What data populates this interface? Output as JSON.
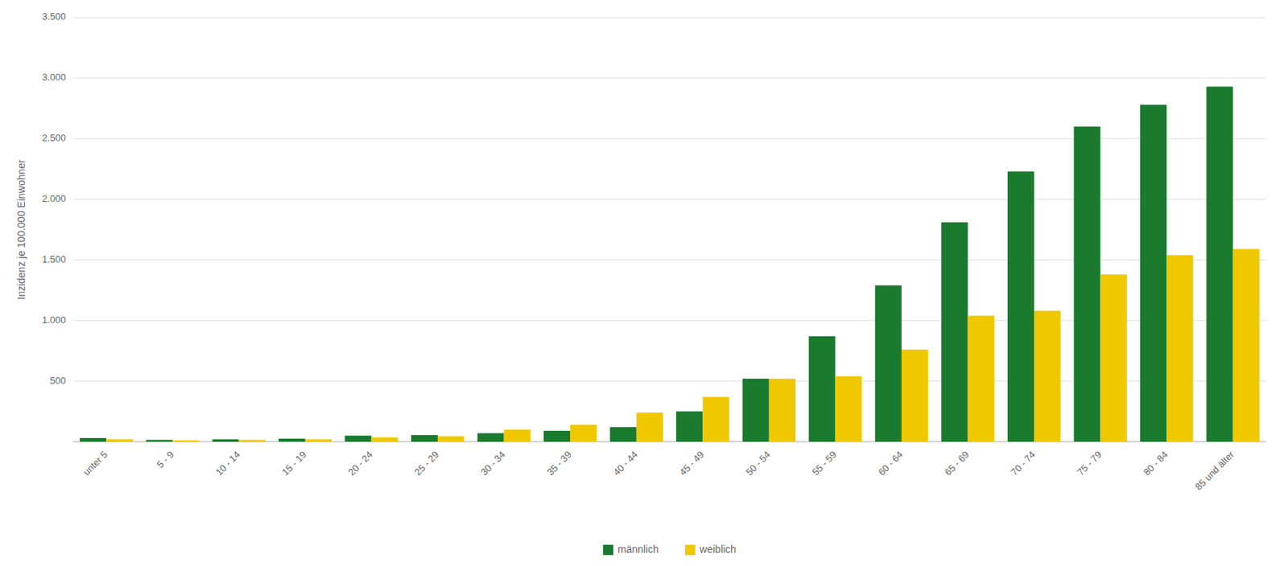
{
  "chart_data": {
    "type": "bar",
    "categories": [
      "unter 5",
      "5 - 9",
      "10 - 14",
      "15 - 19",
      "20 - 24",
      "25 - 29",
      "30 - 34",
      "35 - 39",
      "40 - 44",
      "45 - 49",
      "50 - 54",
      "55 - 59",
      "60 - 64",
      "65 - 69",
      "70 - 74",
      "75 - 79",
      "80 - 84",
      "85 und älter"
    ],
    "series": [
      {
        "name": "männlich",
        "color": "#1a7a2e",
        "values": [
          30,
          15,
          20,
          25,
          50,
          55,
          70,
          90,
          120,
          250,
          520,
          870,
          1290,
          1810,
          2230,
          2600,
          2780,
          2930
        ]
      },
      {
        "name": "weiblich",
        "color": "#f0c800",
        "values": [
          20,
          10,
          15,
          20,
          35,
          45,
          100,
          140,
          240,
          370,
          520,
          540,
          760,
          1040,
          1080,
          1380,
          1540,
          1590
        ]
      }
    ],
    "y_label": "Inzidenz je 100.000 Einwohner",
    "ylim": [
      0,
      3500
    ],
    "yticks": [
      {
        "value": 0,
        "label": null
      },
      500,
      {
        "value": 1000,
        "label": "1.000"
      },
      {
        "value": 1500,
        "label": "1.500"
      },
      {
        "value": 2000,
        "label": "2.000"
      },
      {
        "value": 2500,
        "label": "2.500"
      },
      {
        "value": 3000,
        "label": "3.000"
      },
      {
        "value": 3500,
        "label": "3.500"
      }
    ],
    "grid": true,
    "legend": "bottom"
  }
}
